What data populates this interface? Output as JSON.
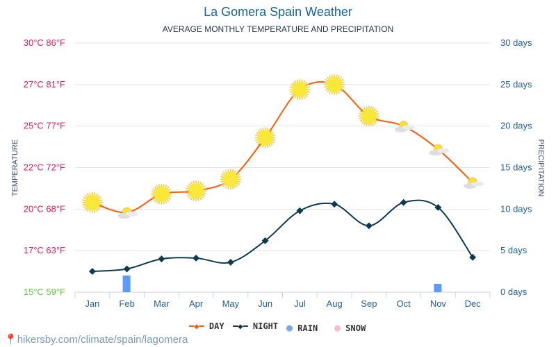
{
  "title": "La Gomera Spain Weather",
  "subtitle": "AVERAGE MONTHLY TEMPERATURE AND PRECIPITATION",
  "footer": "hikersby.com/climate/spain/lagomera",
  "colors": {
    "day": "#ff5a00",
    "night": "#0d3a4f",
    "rain": "#5b9bff",
    "rain_legend": "#79a8e6",
    "snow": "#ffbccb",
    "left_axis": "#e8185a",
    "left_axis_min": "#5cc43c",
    "right_axis": "#1f5e92"
  },
  "chart_data": {
    "type": "line",
    "categories": [
      "Jan",
      "Feb",
      "Mar",
      "Apr",
      "May",
      "Jun",
      "Jul",
      "Aug",
      "Sep",
      "Oct",
      "Nov",
      "Dec"
    ],
    "ylabel": "TEMPERATURE",
    "y2label": "PRECIPITATION",
    "ylim": [
      15,
      30
    ],
    "y2lim": [
      0,
      30
    ],
    "yticks": [
      "15°C 59°F",
      "17°C 63°F",
      "20°C 68°F",
      "22°C 72°F",
      "25°C 77°F",
      "27°C 81°F",
      "30°C 86°F"
    ],
    "y2ticks": [
      "0 days",
      "5 days",
      "10 days",
      "15 days",
      "20 days",
      "25 days",
      "30 days"
    ],
    "grid": true,
    "legend_position": "bottom",
    "series": [
      {
        "name": "DAY",
        "type": "line",
        "axis": "left",
        "values": [
          20.4,
          19.8,
          20.9,
          21.1,
          21.8,
          24.3,
          27.2,
          27.5,
          25.6,
          25.0,
          23.6,
          21.6
        ],
        "icons": [
          "sun",
          "partly-cloudy",
          "sun",
          "sun",
          "sun",
          "sun",
          "sun",
          "sun",
          "sun",
          "partly-cloudy",
          "partly-cloudy",
          "partly-cloudy"
        ]
      },
      {
        "name": "NIGHT",
        "type": "line",
        "axis": "left",
        "values": [
          16.25,
          16.4,
          17.0,
          17.05,
          16.8,
          18.1,
          19.9,
          20.3,
          19.0,
          20.4,
          20.1,
          17.1
        ]
      },
      {
        "name": "RAIN",
        "type": "bar",
        "axis": "right",
        "values": [
          0,
          2,
          0,
          0,
          0,
          0,
          0,
          0,
          0,
          0,
          1,
          0
        ]
      },
      {
        "name": "SNOW",
        "type": "bar",
        "axis": "right",
        "values": [
          0,
          0,
          0,
          0,
          0,
          0,
          0,
          0,
          0,
          0,
          0,
          0
        ]
      }
    ]
  }
}
